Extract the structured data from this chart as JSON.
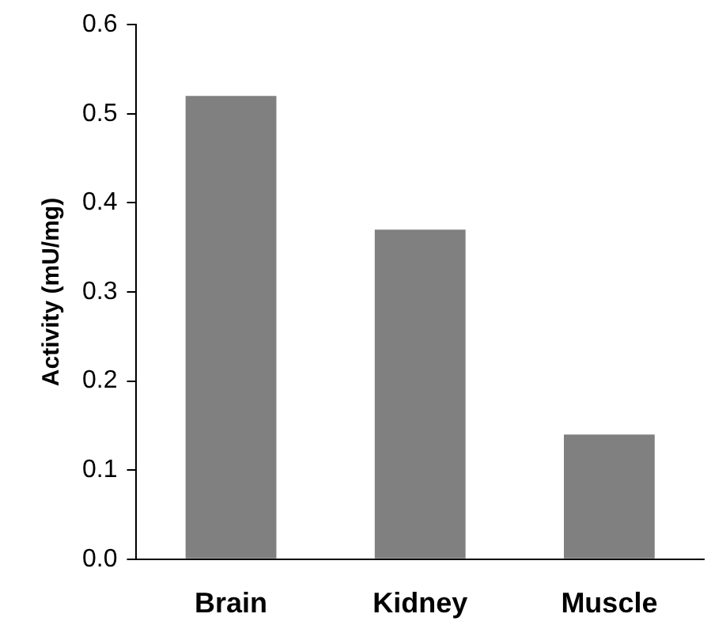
{
  "chart_data": {
    "type": "bar",
    "ylabel": "Activity (mU/mg)",
    "categories": [
      "Brain",
      "Kidney",
      "Muscle"
    ],
    "values": [
      0.52,
      0.37,
      0.14
    ],
    "color": "#808080",
    "ylim": [
      0,
      0.6
    ],
    "yticks": [
      {
        "value": 0,
        "label": "0.0"
      },
      0.1,
      0.2,
      0.3,
      0.4,
      0.5,
      0.6
    ],
    "grid": false,
    "legend": false
  }
}
